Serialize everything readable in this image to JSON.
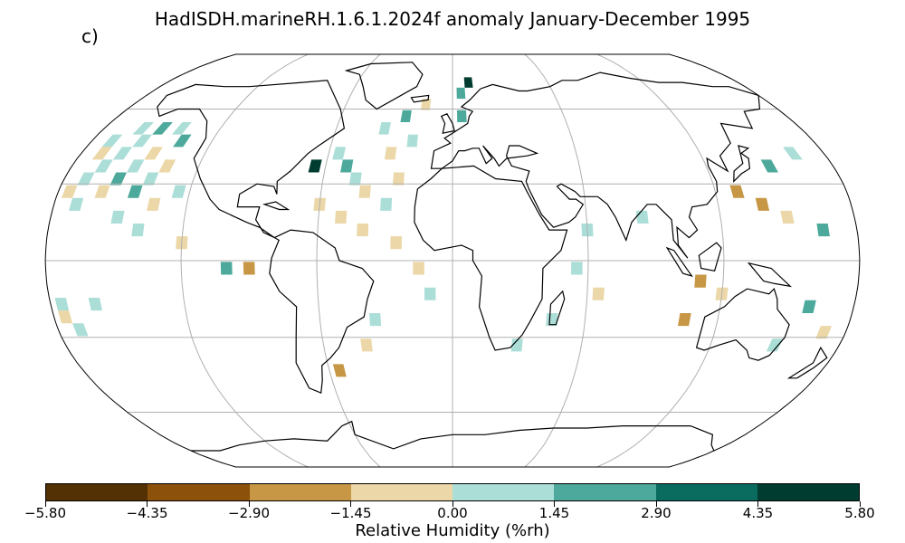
{
  "title": "HadISDH.marineRH.1.6.1.2024f anomaly January-December 1995",
  "panel_label": "c)",
  "colorbar": {
    "label": "Relative Humidity (%rh)",
    "ticks": [
      "−5.80",
      "−4.35",
      "−2.90",
      "−1.45",
      "0.00",
      "1.45",
      "2.90",
      "4.35",
      "5.80"
    ],
    "colors": [
      "#543005",
      "#8c510a",
      "#c79746",
      "#ebd7a7",
      "#acded8",
      "#4da99b",
      "#0a6b5f",
      "#003c30"
    ]
  },
  "map_data": {
    "projection": "robinson",
    "cells": [
      {
        "lat": 52,
        "lon": -160,
        "c": 4
      },
      {
        "lat": 52,
        "lon": -150,
        "c": 5
      },
      {
        "lat": 52,
        "lon": -140,
        "c": 4
      },
      {
        "lat": 47,
        "lon": -170,
        "c": 4
      },
      {
        "lat": 47,
        "lon": -155,
        "c": 4
      },
      {
        "lat": 47,
        "lon": -135,
        "c": 5
      },
      {
        "lat": 42,
        "lon": -170,
        "c": 3
      },
      {
        "lat": 42,
        "lon": -160,
        "c": 4
      },
      {
        "lat": 42,
        "lon": -145,
        "c": 3
      },
      {
        "lat": 37,
        "lon": -165,
        "c": 4
      },
      {
        "lat": 37,
        "lon": -150,
        "c": 4
      },
      {
        "lat": 37,
        "lon": -135,
        "c": 3
      },
      {
        "lat": 32,
        "lon": -170,
        "c": 4
      },
      {
        "lat": 32,
        "lon": -155,
        "c": 5
      },
      {
        "lat": 32,
        "lon": -140,
        "c": 4
      },
      {
        "lat": 27,
        "lon": -175,
        "c": 3
      },
      {
        "lat": 27,
        "lon": -160,
        "c": 3
      },
      {
        "lat": 27,
        "lon": -145,
        "c": 5
      },
      {
        "lat": 27,
        "lon": -125,
        "c": 4
      },
      {
        "lat": 22,
        "lon": -170,
        "c": 4
      },
      {
        "lat": 22,
        "lon": -135,
        "c": 3
      },
      {
        "lat": 17,
        "lon": -150,
        "c": 4
      },
      {
        "lat": 12,
        "lon": -140,
        "c": 4
      },
      {
        "lat": 7,
        "lon": -120,
        "c": 3
      },
      {
        "lat": -3,
        "lon": -100,
        "c": 5
      },
      {
        "lat": -3,
        "lon": -90,
        "c": 2
      },
      {
        "lat": -17,
        "lon": -175,
        "c": 4
      },
      {
        "lat": -17,
        "lon": -160,
        "c": 4
      },
      {
        "lat": -22,
        "lon": -175,
        "c": 3
      },
      {
        "lat": -27,
        "lon": -170,
        "c": 4
      },
      {
        "lat": 37,
        "lon": -65,
        "c": 7
      },
      {
        "lat": 42,
        "lon": -55,
        "c": 4
      },
      {
        "lat": 37,
        "lon": -50,
        "c": 5
      },
      {
        "lat": 32,
        "lon": -45,
        "c": 4
      },
      {
        "lat": 27,
        "lon": -40,
        "c": 3
      },
      {
        "lat": 22,
        "lon": -60,
        "c": 3
      },
      {
        "lat": 17,
        "lon": -50,
        "c": 3
      },
      {
        "lat": 12,
        "lon": -40,
        "c": 3
      },
      {
        "lat": 52,
        "lon": -35,
        "c": 4
      },
      {
        "lat": 57,
        "lon": -25,
        "c": 5
      },
      {
        "lat": 62,
        "lon": -15,
        "c": 3
      },
      {
        "lat": 47,
        "lon": -20,
        "c": 4
      },
      {
        "lat": 42,
        "lon": -30,
        "c": 3
      },
      {
        "lat": 32,
        "lon": -25,
        "c": 3
      },
      {
        "lat": 22,
        "lon": -30,
        "c": 4
      },
      {
        "lat": 7,
        "lon": -25,
        "c": 3
      },
      {
        "lat": -3,
        "lon": -15,
        "c": 3
      },
      {
        "lat": -13,
        "lon": -10,
        "c": 4
      },
      {
        "lat": -23,
        "lon": -35,
        "c": 4
      },
      {
        "lat": -33,
        "lon": -40,
        "c": 3
      },
      {
        "lat": -43,
        "lon": -55,
        "c": 2
      },
      {
        "lat": 72,
        "lon": 10,
        "c": 7
      },
      {
        "lat": 67,
        "lon": 5,
        "c": 5
      },
      {
        "lat": 57,
        "lon": 5,
        "c": 5
      },
      {
        "lat": -3,
        "lon": 55,
        "c": 4
      },
      {
        "lat": -13,
        "lon": 65,
        "c": 3
      },
      {
        "lat": -23,
        "lon": 45,
        "c": 4
      },
      {
        "lat": -33,
        "lon": 30,
        "c": 4
      },
      {
        "lat": 12,
        "lon": 60,
        "c": 4
      },
      {
        "lat": 17,
        "lon": 85,
        "c": 4
      },
      {
        "lat": 27,
        "lon": 130,
        "c": 2
      },
      {
        "lat": 22,
        "lon": 140,
        "c": 2
      },
      {
        "lat": 17,
        "lon": 150,
        "c": 3
      },
      {
        "lat": 37,
        "lon": 150,
        "c": 5
      },
      {
        "lat": 42,
        "lon": 165,
        "c": 4
      },
      {
        "lat": 12,
        "lon": 165,
        "c": 5
      },
      {
        "lat": -8,
        "lon": 110,
        "c": 2
      },
      {
        "lat": -13,
        "lon": 120,
        "c": 3
      },
      {
        "lat": -23,
        "lon": 105,
        "c": 2
      },
      {
        "lat": -18,
        "lon": 160,
        "c": 5
      },
      {
        "lat": -28,
        "lon": 170,
        "c": 3
      },
      {
        "lat": -33,
        "lon": 150,
        "c": 4
      }
    ]
  }
}
